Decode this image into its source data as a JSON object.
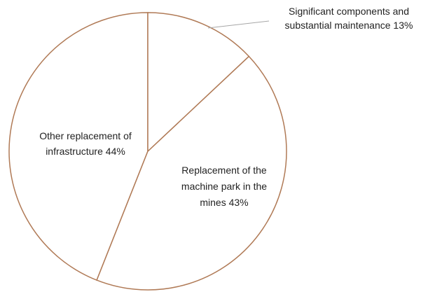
{
  "chart_data": {
    "type": "pie",
    "categories": [
      "Significant components and substantial maintenance",
      "Replacement of the machine park in the mines",
      "Other replacement of infrastructure"
    ],
    "values": [
      13,
      43,
      44
    ],
    "value_labels": [
      "13%",
      "43%",
      "44%"
    ],
    "color": "#ffffff",
    "edge_color": "#b07a56"
  }
}
